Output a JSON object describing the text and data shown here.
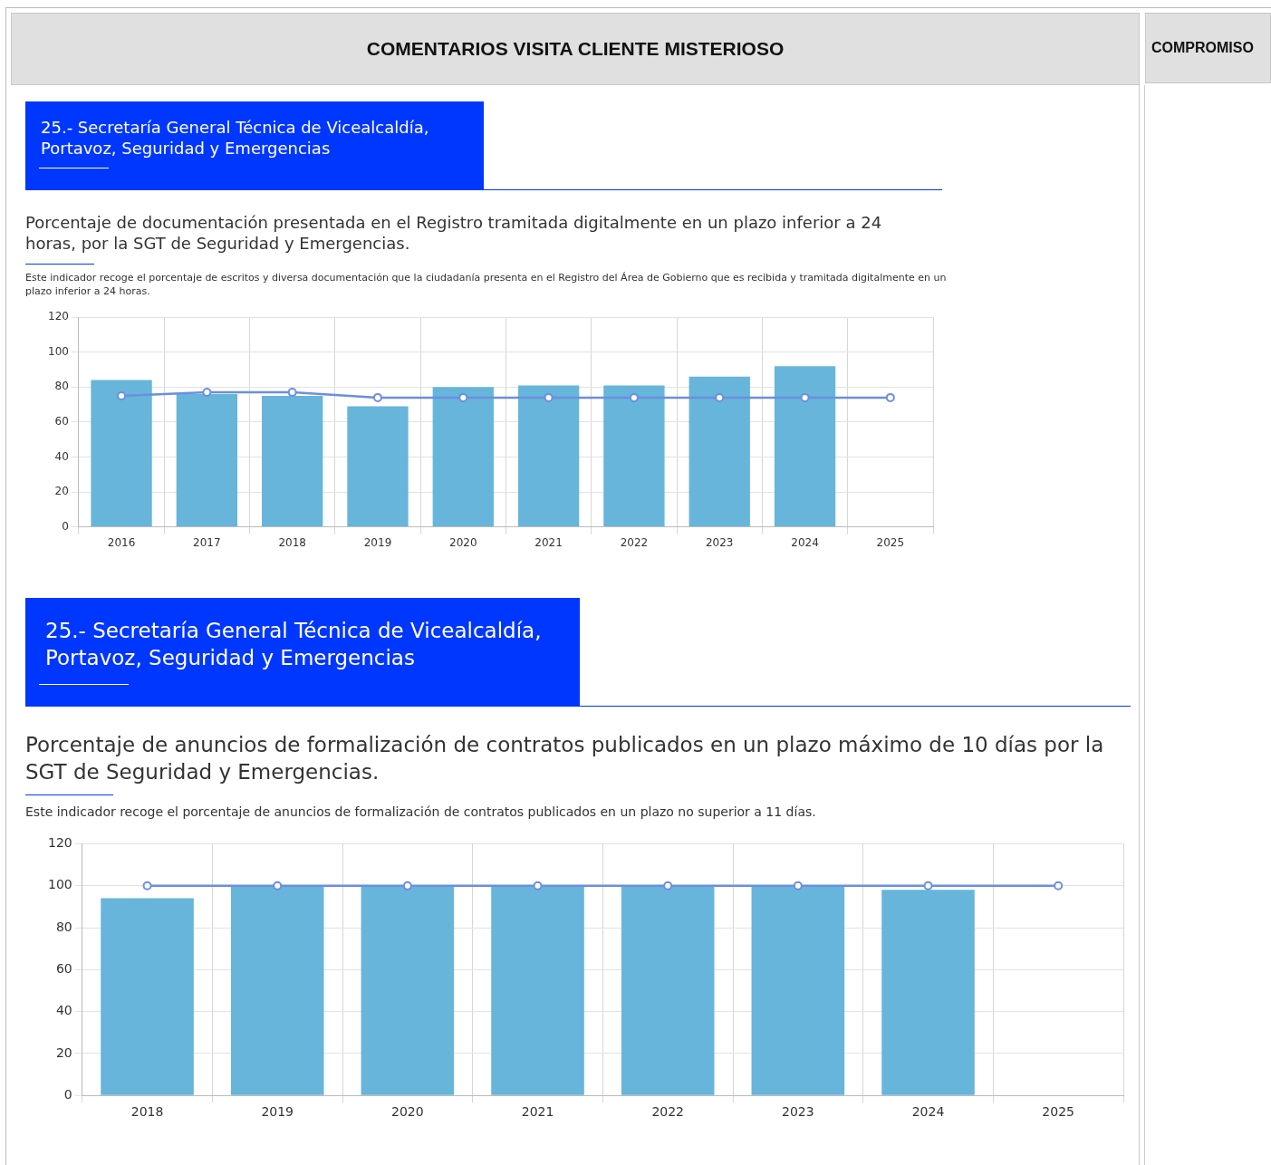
{
  "chart_data": [
    {
      "type": "other",
      "title": "COMENTARIOS VISITA CLIENTE MISTERIOSO",
      "annotations": [
        "COMPROMISO"
      ]
    },
    {
      "type": "bar",
      "title": "25.- Secretaría General Técnica de Vicealcaldía, Portavoz, Seguridad y Emergencias",
      "subtitle": "Porcentaje de documentación presentada en el Registro tramitada digitalmente en un plazo inferior a 24 horas, por la SGT de Seguridad y Emergencias.",
      "annotations": [
        "Este indicador recoge el porcentaje de escritos y diversa documentación que la ciudadanía presenta en el Registro del Área de Gobierno que es recibida y tramitada digitalmente en un plazo inferior a 24 horas."
      ],
      "categories": [
        "2016",
        "2017",
        "2018",
        "2019",
        "2020",
        "2021",
        "2022",
        "2023",
        "2024",
        "2025"
      ],
      "series": [
        {
          "type": "bar",
          "color": "#67b5db",
          "values": [
            84,
            76,
            75,
            69,
            80,
            81,
            81,
            86,
            92,
            null
          ]
        },
        {
          "type": "line",
          "color": "#6b8fdf",
          "values": [
            75,
            77,
            77,
            74,
            74,
            74,
            74,
            74,
            74,
            74
          ]
        }
      ],
      "ylim": [
        0,
        120
      ],
      "yticks": [
        0,
        20,
        40,
        60,
        80,
        100,
        120
      ],
      "grid": true,
      "marker": "circle"
    },
    {
      "type": "bar",
      "title": "25.- Secretaría General Técnica de Vicealcaldía, Portavoz, Seguridad y Emergencias",
      "subtitle": "Porcentaje de anuncios de formalización de contratos publicados en un plazo máximo de 10 días por la SGT de Seguridad y Emergencias.",
      "annotations": [
        "Este indicador recoge el porcentaje de anuncios de formalización de contratos publicados en un plazo no superior a 11 días."
      ],
      "categories": [
        "2018",
        "2019",
        "2020",
        "2021",
        "2022",
        "2023",
        "2024",
        "2025"
      ],
      "series": [
        {
          "type": "bar",
          "color": "#67b5db",
          "values": [
            94,
            100,
            100,
            100,
            100,
            100,
            98,
            null
          ]
        },
        {
          "type": "line",
          "color": "#6b8fdf",
          "values": [
            100,
            100,
            100,
            100,
            100,
            100,
            100,
            100
          ]
        }
      ],
      "ylim": [
        0,
        120
      ],
      "yticks": [
        0,
        20,
        40,
        60,
        80,
        100,
        120
      ],
      "grid": true,
      "marker": "circle"
    }
  ]
}
